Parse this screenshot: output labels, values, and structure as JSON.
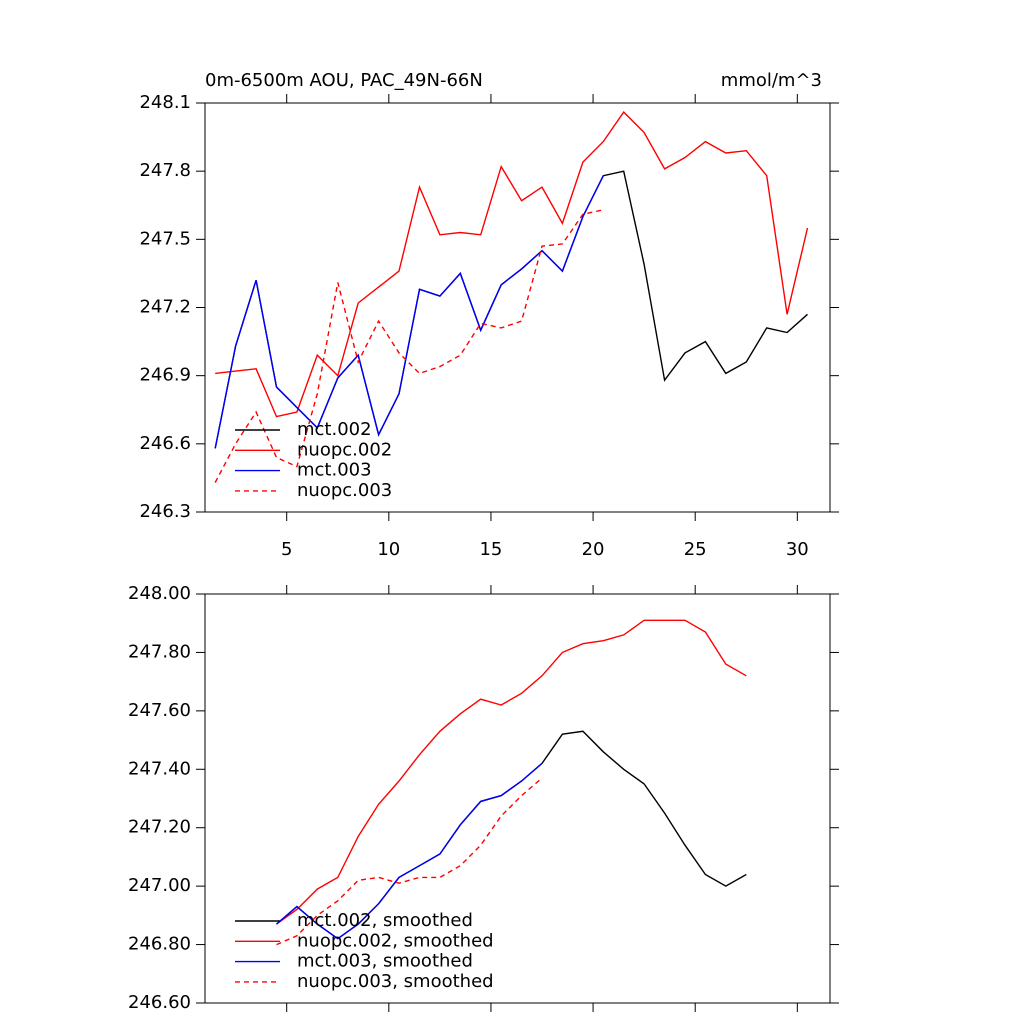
{
  "chart_data": [
    {
      "type": "line",
      "title": "0m-6500m AOU, PAC_49N-66N",
      "units_label": "mmol/m^3",
      "x": [
        1.5,
        2.5,
        3.5,
        4.5,
        5.5,
        6.5,
        7.5,
        8.5,
        9.5,
        10.5,
        11.5,
        12.5,
        13.5,
        14.5,
        15.5,
        16.5,
        17.5,
        18.5,
        19.5,
        20.5,
        21.5,
        22.5,
        23.5,
        24.5,
        25.5,
        26.5,
        27.5,
        28.5,
        29.5,
        30.5
      ],
      "series": [
        {
          "name": "mct.002",
          "color": "#000000",
          "dashed": false,
          "values": [
            246.58,
            247.03,
            247.32,
            246.85,
            246.76,
            246.67,
            246.89,
            246.99,
            246.64,
            246.82,
            247.28,
            247.25,
            247.35,
            247.1,
            247.3,
            247.37,
            247.45,
            247.36,
            247.6,
            247.78,
            247.8,
            247.39,
            246.88,
            247.0,
            247.05,
            246.91,
            246.96,
            247.11,
            247.09,
            247.17
          ]
        },
        {
          "name": "nuopc.002",
          "color": "#ff0000",
          "dashed": false,
          "values": [
            246.91,
            246.92,
            246.93,
            246.72,
            246.74,
            246.99,
            246.9,
            247.22,
            247.29,
            247.36,
            247.73,
            247.52,
            247.53,
            247.52,
            247.82,
            247.67,
            247.73,
            247.57,
            247.84,
            247.93,
            248.06,
            247.97,
            247.81,
            247.86,
            247.93,
            247.88,
            247.89,
            247.78,
            247.17,
            247.55
          ]
        },
        {
          "name": "mct.003",
          "color": "#0000ff",
          "dashed": false,
          "values": [
            246.58,
            247.03,
            247.32,
            246.85,
            246.76,
            246.67,
            246.89,
            246.99,
            246.64,
            246.82,
            247.28,
            247.25,
            247.35,
            247.1,
            247.3,
            247.37,
            247.45,
            247.36,
            247.6,
            247.78,
            null,
            null,
            null,
            null,
            null,
            null,
            null,
            null,
            null,
            null
          ]
        },
        {
          "name": "nuopc.003",
          "color": "#ff0000",
          "dashed": true,
          "values": [
            246.43,
            246.6,
            246.74,
            246.54,
            246.5,
            246.82,
            247.31,
            246.96,
            247.14,
            247.0,
            246.91,
            246.94,
            246.99,
            247.13,
            247.11,
            247.14,
            247.47,
            247.48,
            247.61,
            247.63,
            null,
            null,
            null,
            null,
            null,
            null,
            null,
            null,
            null,
            null
          ]
        }
      ],
      "xlim": [
        1,
        31.6
      ],
      "xticks": [
        5,
        10,
        15,
        20,
        25,
        30
      ],
      "ylim": [
        246.3,
        248.1
      ],
      "yticks": [
        246.3,
        246.6,
        246.9,
        247.2,
        247.5,
        247.8,
        248.1
      ],
      "legend": "lower-left"
    },
    {
      "type": "line",
      "x": [
        4.5,
        5.5,
        6.5,
        7.5,
        8.5,
        9.5,
        10.5,
        11.5,
        12.5,
        13.5,
        14.5,
        15.5,
        16.5,
        17.5,
        18.5,
        19.5,
        20.5,
        21.5,
        22.5,
        23.5,
        24.5,
        25.5,
        26.5,
        27.5
      ],
      "series": [
        {
          "name": "mct.002, smoothed",
          "color": "#000000",
          "dashed": false,
          "values": [
            246.87,
            246.93,
            246.87,
            246.82,
            246.87,
            246.94,
            247.03,
            247.07,
            247.11,
            247.21,
            247.29,
            247.31,
            247.36,
            247.42,
            247.52,
            247.53,
            247.46,
            247.4,
            247.35,
            247.25,
            247.14,
            247.04,
            247.0,
            247.04
          ]
        },
        {
          "name": "nuopc.002, smoothed",
          "color": "#ff0000",
          "dashed": false,
          "values": [
            246.87,
            246.92,
            246.99,
            247.03,
            247.17,
            247.28,
            247.36,
            247.45,
            247.53,
            247.59,
            247.64,
            247.62,
            247.66,
            247.72,
            247.8,
            247.83,
            247.84,
            247.86,
            247.91,
            247.91,
            247.91,
            247.87,
            247.76,
            247.72
          ]
        },
        {
          "name": "mct.003, smoothed",
          "color": "#0000ff",
          "dashed": false,
          "values": [
            246.87,
            246.93,
            246.87,
            246.82,
            246.87,
            246.94,
            247.03,
            247.07,
            247.11,
            247.21,
            247.29,
            247.31,
            247.36,
            247.42,
            null,
            null,
            null,
            null,
            null,
            null,
            null,
            null,
            null,
            null
          ]
        },
        {
          "name": "nuopc.003, smoothed",
          "color": "#ff0000",
          "dashed": true,
          "values": [
            246.8,
            246.83,
            246.9,
            246.95,
            247.02,
            247.03,
            247.01,
            247.03,
            247.03,
            247.07,
            247.14,
            247.24,
            247.31,
            247.37,
            null,
            null,
            null,
            null,
            null,
            null,
            null,
            null,
            null,
            null
          ]
        }
      ],
      "xlim": [
        1,
        31.6
      ],
      "xticks": [
        5,
        10,
        15,
        20,
        25,
        30
      ],
      "ylim": [
        246.6,
        248.0
      ],
      "yticks": [
        {
          "value": 246.6,
          "label": "246.60"
        },
        {
          "value": 246.8,
          "label": "246.80"
        },
        {
          "value": 247.0,
          "label": "247.00"
        },
        {
          "value": 247.2,
          "label": "247.20"
        },
        {
          "value": 247.4,
          "label": "247.40"
        },
        {
          "value": 247.6,
          "label": "247.60"
        },
        {
          "value": 247.8,
          "label": "247.80"
        },
        {
          "value": 248.0,
          "label": "248.00"
        }
      ],
      "legend": "lower-left"
    }
  ]
}
